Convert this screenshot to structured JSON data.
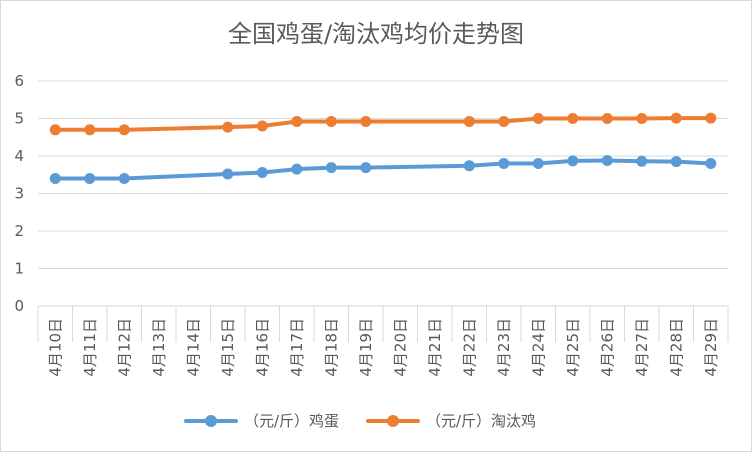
{
  "chart_data": {
    "type": "line",
    "title": "全国鸡蛋/淘汰鸡均价走势图",
    "xlabel": "",
    "ylabel": "",
    "ylim": [
      0,
      6
    ],
    "yticks": [
      "0",
      "1",
      "2",
      "3",
      "4",
      "5",
      "6"
    ],
    "grid": true,
    "legend_position": "bottom",
    "categories": [
      "4月10日",
      "4月11日",
      "4月12日",
      "4月13日",
      "4月14日",
      "4月15日",
      "4月16日",
      "4月17日",
      "4月18日",
      "4月19日",
      "4月20日",
      "4月21日",
      "4月22日",
      "4月23日",
      "4月24日",
      "4月25日",
      "4月26日",
      "4月27日",
      "4月28日",
      "4月29日"
    ],
    "series": [
      {
        "name": "（元/斤）鸡蛋",
        "color": "#5b9bd5",
        "values": [
          3.4,
          3.4,
          3.4,
          null,
          null,
          3.52,
          3.56,
          3.65,
          3.69,
          3.69,
          null,
          null,
          3.74,
          3.8,
          3.8,
          3.87,
          3.88,
          3.86,
          3.85,
          3.8
        ]
      },
      {
        "name": "（元/斤）淘汰鸡",
        "color": "#ed7d31",
        "values": [
          4.7,
          4.7,
          4.7,
          null,
          null,
          4.77,
          4.8,
          4.92,
          4.92,
          4.92,
          null,
          null,
          4.92,
          4.92,
          5.0,
          5.0,
          5.0,
          5.0,
          5.01,
          5.01
        ]
      }
    ]
  }
}
